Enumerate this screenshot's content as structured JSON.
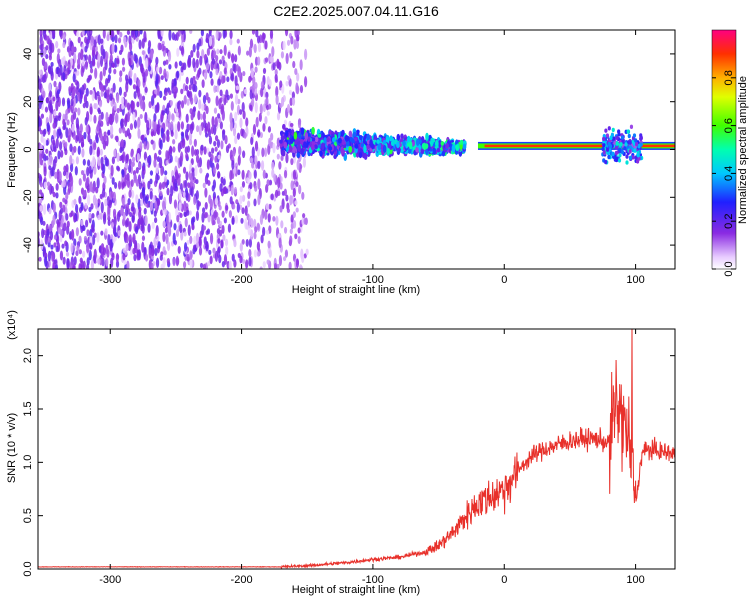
{
  "title": "C2E2.2025.007.04.11.G16",
  "chart_data": [
    {
      "type": "heatmap",
      "xlabel": "Height of straight line (km)",
      "ylabel": "Frequency (Hz)",
      "xlim": [
        -355,
        130
      ],
      "ylim": [
        -50,
        50
      ],
      "xticks": [
        -300,
        -200,
        -100,
        0,
        100
      ],
      "yticks": [
        -40,
        -20,
        0,
        20,
        40
      ],
      "colorbar": {
        "label": "Normalized spectral amplitude",
        "ticks": [
          "0.0",
          "0.2",
          "0.4",
          "0.6",
          "0.8"
        ],
        "range": [
          0,
          1
        ],
        "colormap": "rainbow"
      },
      "features": [
        {
          "region": "noise",
          "x_range": [
            -355,
            -150
          ],
          "freq_range": [
            -50,
            50
          ],
          "amplitude": 0.1
        },
        {
          "region": "signal-onset",
          "x_range": [
            -170,
            -30
          ],
          "freq_center": 3,
          "freq_spread": 15,
          "amplitude": 0.3
        },
        {
          "region": "tracking",
          "x_range": [
            -20,
            130
          ],
          "freq_center": 1.5,
          "amplitude": 0.9
        }
      ]
    },
    {
      "type": "line",
      "xlabel": "Height of straight line (km)",
      "ylabel": "SNR (10 * v/v)",
      "scale_label": "(x10⁴)",
      "xlim": [
        -355,
        130
      ],
      "ylim": [
        0,
        2.25
      ],
      "xticks": [
        -300,
        -200,
        -100,
        0,
        100
      ],
      "yticks": [
        "0.0",
        "0.5",
        "1.0",
        "1.5",
        "2.0"
      ],
      "series_color": "#e8302a",
      "series": [
        {
          "x": [
            -355,
            -300,
            -250,
            -200,
            -170,
            -150,
            -120,
            -100,
            -80,
            -60,
            -50,
            -40,
            -30,
            -20,
            -10,
            0,
            10,
            20,
            30,
            40,
            50,
            60,
            70,
            80,
            85,
            90,
            95,
            100,
            105,
            110,
            120,
            130
          ],
          "values": [
            0.02,
            0.02,
            0.02,
            0.02,
            0.02,
            0.03,
            0.06,
            0.09,
            0.11,
            0.16,
            0.22,
            0.33,
            0.48,
            0.62,
            0.68,
            0.75,
            0.92,
            1.05,
            1.12,
            1.16,
            1.2,
            1.22,
            1.22,
            1.18,
            1.55,
            1.4,
            1.2,
            0.6,
            1.1,
            1.12,
            1.1,
            1.08
          ]
        }
      ]
    }
  ]
}
